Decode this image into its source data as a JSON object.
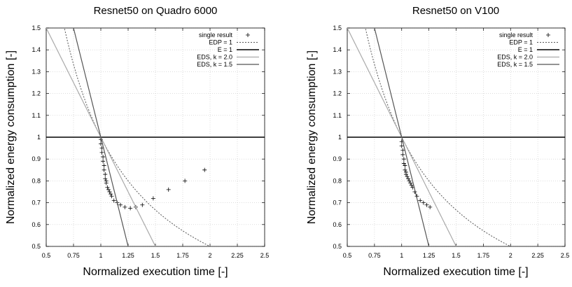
{
  "chart_data": [
    {
      "type": "line",
      "title": "Resnet50 on Quadro 6000",
      "xlabel": "Normalized execution time [-]",
      "ylabel": "Normalized energy consumption [-]",
      "xlim": [
        0.5,
        2.5
      ],
      "ylim": [
        0.5,
        1.5
      ],
      "x_ticks": [
        "0.5",
        "0.75",
        "1",
        "1.25",
        "1.5",
        "1.75",
        "2",
        "2.25",
        "2.5"
      ],
      "y_ticks": [
        "0.5",
        "0.6",
        "0.7",
        "0.8",
        "0.9",
        "1",
        "1.1",
        "1.2",
        "1.3",
        "1.4",
        "1.5"
      ],
      "grid": true,
      "legend_position": "top-right",
      "series": [
        {
          "name": "single result",
          "kind": "points",
          "color": "#000000",
          "x": [
            1.0,
            1.0,
            1.01,
            1.01,
            1.02,
            1.02,
            1.03,
            1.03,
            1.04,
            1.04,
            1.05,
            1.05,
            1.06,
            1.07,
            1.08,
            1.09,
            1.1,
            1.12,
            1.15,
            1.18,
            1.22,
            1.27,
            1.32,
            1.38,
            1.48,
            1.62,
            1.77,
            1.95
          ],
          "y": [
            0.99,
            0.97,
            0.95,
            0.93,
            0.91,
            0.89,
            0.87,
            0.85,
            0.83,
            0.81,
            0.8,
            0.79,
            0.77,
            0.76,
            0.75,
            0.74,
            0.73,
            0.71,
            0.7,
            0.69,
            0.68,
            0.675,
            0.68,
            0.69,
            0.72,
            0.76,
            0.8,
            0.85
          ]
        },
        {
          "name": "EDP = 1",
          "kind": "curve",
          "formula": "1/x",
          "style": "dotted",
          "color": "#555555"
        },
        {
          "name": "E = 1",
          "kind": "curve",
          "formula": "1",
          "style": "solid-thick",
          "color": "#000000"
        },
        {
          "name": "EDS, k = 2.0",
          "kind": "curve",
          "formula": "2-x",
          "style": "solid",
          "color": "#aaaaaa"
        },
        {
          "name": "EDS, k = 1.5",
          "kind": "curve",
          "formula": "1+(1-x)*2",
          "style": "solid",
          "color": "#555555"
        }
      ]
    },
    {
      "type": "line",
      "title": "Resnet50 on V100",
      "xlabel": "Normalized execution time [-]",
      "ylabel": "Normalized energy consumption [-]",
      "xlim": [
        0.5,
        2.5
      ],
      "ylim": [
        0.5,
        1.5
      ],
      "x_ticks": [
        "0.5",
        "0.75",
        "1",
        "1.25",
        "1.5",
        "1.75",
        "2",
        "2.25",
        "2.5"
      ],
      "y_ticks": [
        "0.5",
        "0.6",
        "0.7",
        "0.8",
        "0.9",
        "1",
        "1.1",
        "1.2",
        "1.3",
        "1.4",
        "1.5"
      ],
      "grid": true,
      "legend_position": "top-right",
      "series": [
        {
          "name": "single result",
          "kind": "points",
          "color": "#000000",
          "x": [
            1.0,
            1.0,
            1.01,
            1.01,
            1.02,
            1.02,
            1.03,
            1.03,
            1.04,
            1.04,
            1.05,
            1.06,
            1.07,
            1.08,
            1.09,
            1.1,
            1.12,
            1.14,
            1.17,
            1.2,
            1.23,
            1.26
          ],
          "y": [
            0.98,
            0.96,
            0.94,
            0.92,
            0.9,
            0.88,
            0.87,
            0.85,
            0.84,
            0.83,
            0.82,
            0.81,
            0.8,
            0.79,
            0.78,
            0.77,
            0.75,
            0.73,
            0.71,
            0.7,
            0.69,
            0.68
          ]
        },
        {
          "name": "EDP = 1",
          "kind": "curve",
          "formula": "1/x",
          "style": "dotted",
          "color": "#555555"
        },
        {
          "name": "E = 1",
          "kind": "curve",
          "formula": "1",
          "style": "solid-thick",
          "color": "#000000"
        },
        {
          "name": "EDS, k = 2.0",
          "kind": "curve",
          "formula": "2-x",
          "style": "solid",
          "color": "#aaaaaa"
        },
        {
          "name": "EDS, k = 1.5",
          "kind": "curve",
          "formula": "1+(1-x)*2",
          "style": "solid",
          "color": "#555555"
        }
      ]
    }
  ]
}
